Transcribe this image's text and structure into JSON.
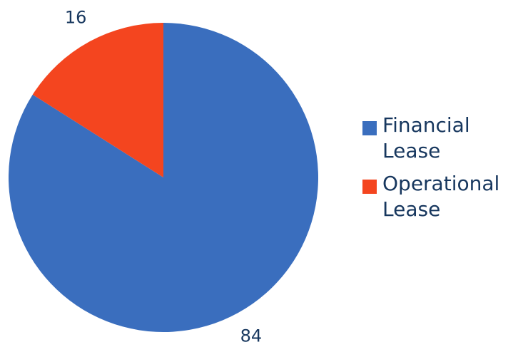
{
  "chart_data": {
    "type": "pie",
    "categories": [
      "Financial Lease",
      "Operational Lease"
    ],
    "values": [
      84,
      16
    ],
    "colors": [
      "#3a6ebe",
      "#f4451f"
    ],
    "legend": "right"
  }
}
